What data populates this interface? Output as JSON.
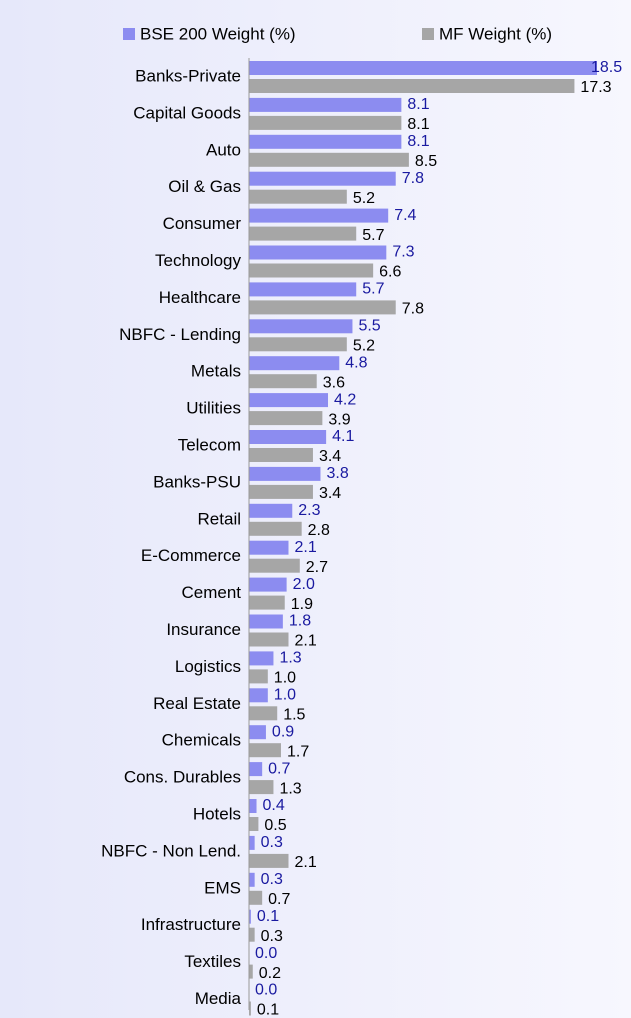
{
  "chart_data": {
    "type": "hbar",
    "categories": [
      "Banks-Private",
      "Capital Goods",
      "Auto",
      "Oil & Gas",
      "Consumer",
      "Technology",
      "Healthcare",
      "NBFC - Lending",
      "Metals",
      "Utilities",
      "Telecom",
      "Banks-PSU",
      "Retail",
      "E-Commerce",
      "Cement",
      "Insurance",
      "Logistics",
      "Real Estate",
      "Chemicals",
      "Cons. Durables",
      "Hotels",
      "NBFC - Non Lend.",
      "EMS",
      "Infrastructure",
      "Textiles",
      "Media"
    ],
    "series": [
      {
        "name": "BSE 200 Weight (%)",
        "color": "#8c8cf0",
        "label_color": "#1a1aa0",
        "values": [
          18.5,
          8.1,
          8.1,
          7.8,
          7.4,
          7.3,
          5.7,
          5.5,
          4.8,
          4.2,
          4.1,
          3.8,
          2.3,
          2.1,
          2.0,
          1.8,
          1.3,
          1.0,
          0.9,
          0.7,
          0.4,
          0.3,
          0.3,
          0.1,
          0.0,
          0.0
        ],
        "value_labels": [
          "18.5",
          "8.1",
          "8.1",
          "7.8",
          "7.4",
          "7.3",
          "5.7",
          "5.5",
          "4.8",
          "4.2",
          "4.1",
          "3.8",
          "2.3",
          "2.1",
          "2.0",
          "1.8",
          "1.3",
          "1.0",
          "0.9",
          "0.7",
          "0.4",
          "0.3",
          "0.3",
          "0.1",
          "0.0",
          "0.0"
        ]
      },
      {
        "name": "MF Weight (%)",
        "color": "#a6a6a6",
        "label_color": "#000000",
        "values": [
          17.3,
          8.1,
          8.5,
          5.2,
          5.7,
          6.6,
          7.8,
          5.2,
          3.6,
          3.9,
          3.4,
          3.4,
          2.8,
          2.7,
          1.9,
          2.1,
          1.0,
          1.5,
          1.7,
          1.3,
          0.5,
          2.1,
          0.7,
          0.3,
          0.2,
          0.1
        ],
        "value_labels": [
          "17.3",
          "8.1",
          "8.5",
          "5.2",
          "5.7",
          "6.6",
          "7.8",
          "5.2",
          "3.6",
          "3.9",
          "3.4",
          "3.4",
          "2.8",
          "2.7",
          "1.9",
          "2.1",
          "1.0",
          "1.5",
          "1.7",
          "1.3",
          "0.5",
          "2.1",
          "0.7",
          "0.3",
          "0.2",
          "0.1"
        ]
      }
    ],
    "legend": "top"
  }
}
